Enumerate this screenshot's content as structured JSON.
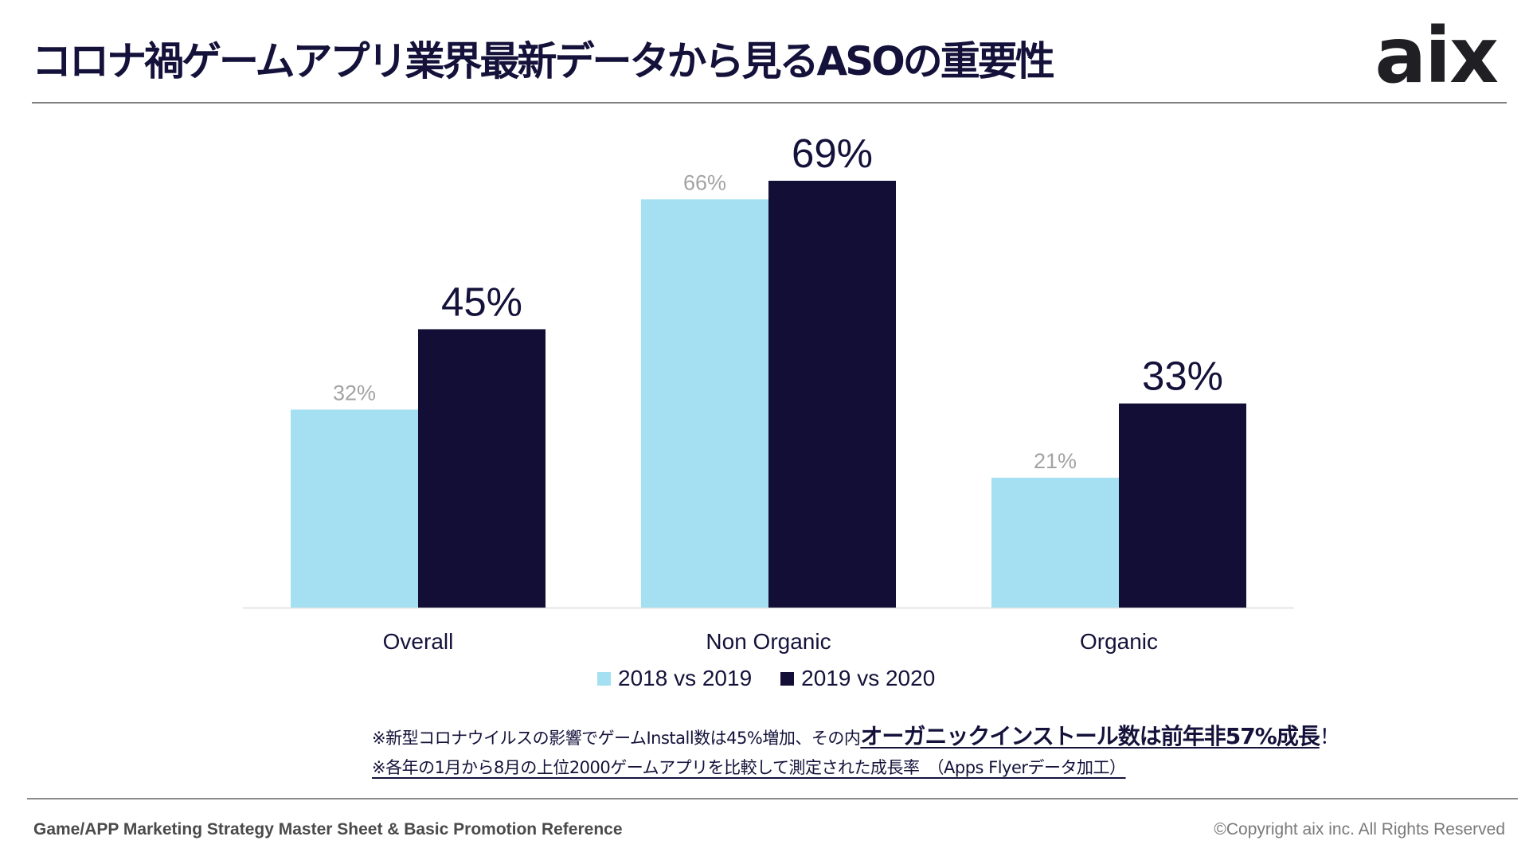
{
  "header": {
    "title": "コロナ禍ゲームアプリ業界最新データから見るASOの重要性",
    "logo_text": "aix"
  },
  "chart_data": {
    "type": "bar",
    "categories": [
      "Overall",
      "Non Organic",
      "Organic"
    ],
    "series": [
      {
        "name": "2018 vs 2019",
        "values": [
          32,
          66,
          21
        ],
        "labels": [
          "32%",
          "66%",
          "21%"
        ],
        "color": "#a4e0f1"
      },
      {
        "name": "2019 vs 2020",
        "values": [
          45,
          69,
          33
        ],
        "labels": [
          "45%",
          "69%",
          "33%"
        ],
        "color": "#120e35"
      }
    ],
    "ylim": [
      0,
      69
    ],
    "grid": false,
    "legend": "bottom"
  },
  "notes": {
    "line1_prefix": "※新型コロナウイルスの影響でゲームInstall数は45%増加、その内",
    "line1_emphasis": "オーガニックインストール数は前年非57%成長",
    "line1_suffix": "！",
    "line2": "※各年の1月から8月の上位2000ゲームアプリを比較して測定された成長率　（Apps Flyerデータ加工）"
  },
  "footer": {
    "left": "Game/APP Marketing Strategy Master Sheet & Basic Promotion Reference",
    "right": "©Copyright aix inc. All Rights Reserved"
  }
}
